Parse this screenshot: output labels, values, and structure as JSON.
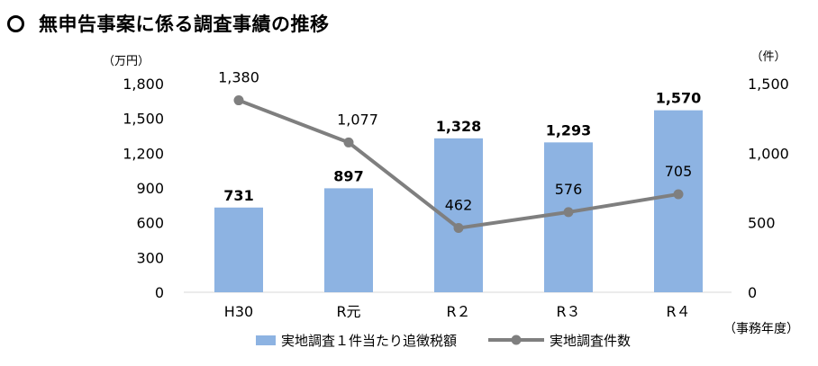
{
  "title": "無申告事案に係る調査事績の推移",
  "chart_data": {
    "type": "bar",
    "categories": [
      "H30",
      "R元",
      "R２",
      "R３",
      "R４"
    ],
    "xlabel": "（事務年度）",
    "y_left": {
      "unit": "（万円）",
      "ylim": [
        0,
        1800
      ],
      "ticks": [
        "0",
        "300",
        "600",
        "900",
        "1,200",
        "1,500",
        "1,800"
      ]
    },
    "y_right": {
      "unit": "（件）",
      "ylim": [
        0,
        1500
      ],
      "ticks": [
        "0",
        "500",
        "1,000",
        "1,500"
      ]
    },
    "series": [
      {
        "name": "実地調査１件当たり追徴税額",
        "type": "bar",
        "axis": "left",
        "color": "#8db3e2",
        "values": [
          731,
          897,
          1328,
          1293,
          1570
        ],
        "labels": [
          "731",
          "897",
          "1,328",
          "1,293",
          "1,570"
        ]
      },
      {
        "name": "実地調査件数",
        "type": "line",
        "axis": "right",
        "color": "#7f7f7f",
        "values": [
          1380,
          1077,
          462,
          576,
          705
        ],
        "labels": [
          "1,380",
          "1,077",
          "462",
          "576",
          "705"
        ]
      }
    ],
    "legend": "bottom",
    "grid": false
  }
}
